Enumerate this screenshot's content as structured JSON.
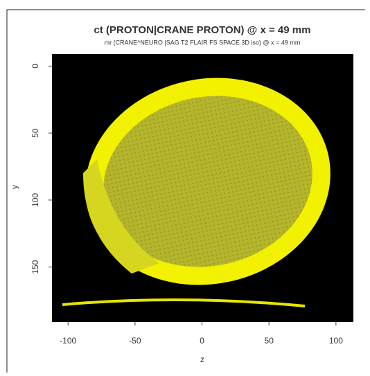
{
  "chart_data": {
    "type": "image",
    "title": "ct (PROTON|CRANE PROTON) @ x = 49 mm",
    "subtitle": "mr (CRANE^NEURO |SAG T2 FLAIR FS SPACE 3D iso) @ x = 49 mm",
    "xlabel": "z",
    "ylabel": "y",
    "xlim": [
      -112,
      113
    ],
    "xticks": [
      -100,
      -50,
      0,
      50,
      100
    ],
    "ylim": [
      -9,
      191
    ],
    "yticks": [
      0,
      50,
      100,
      150
    ],
    "y_inverted": true
  }
}
